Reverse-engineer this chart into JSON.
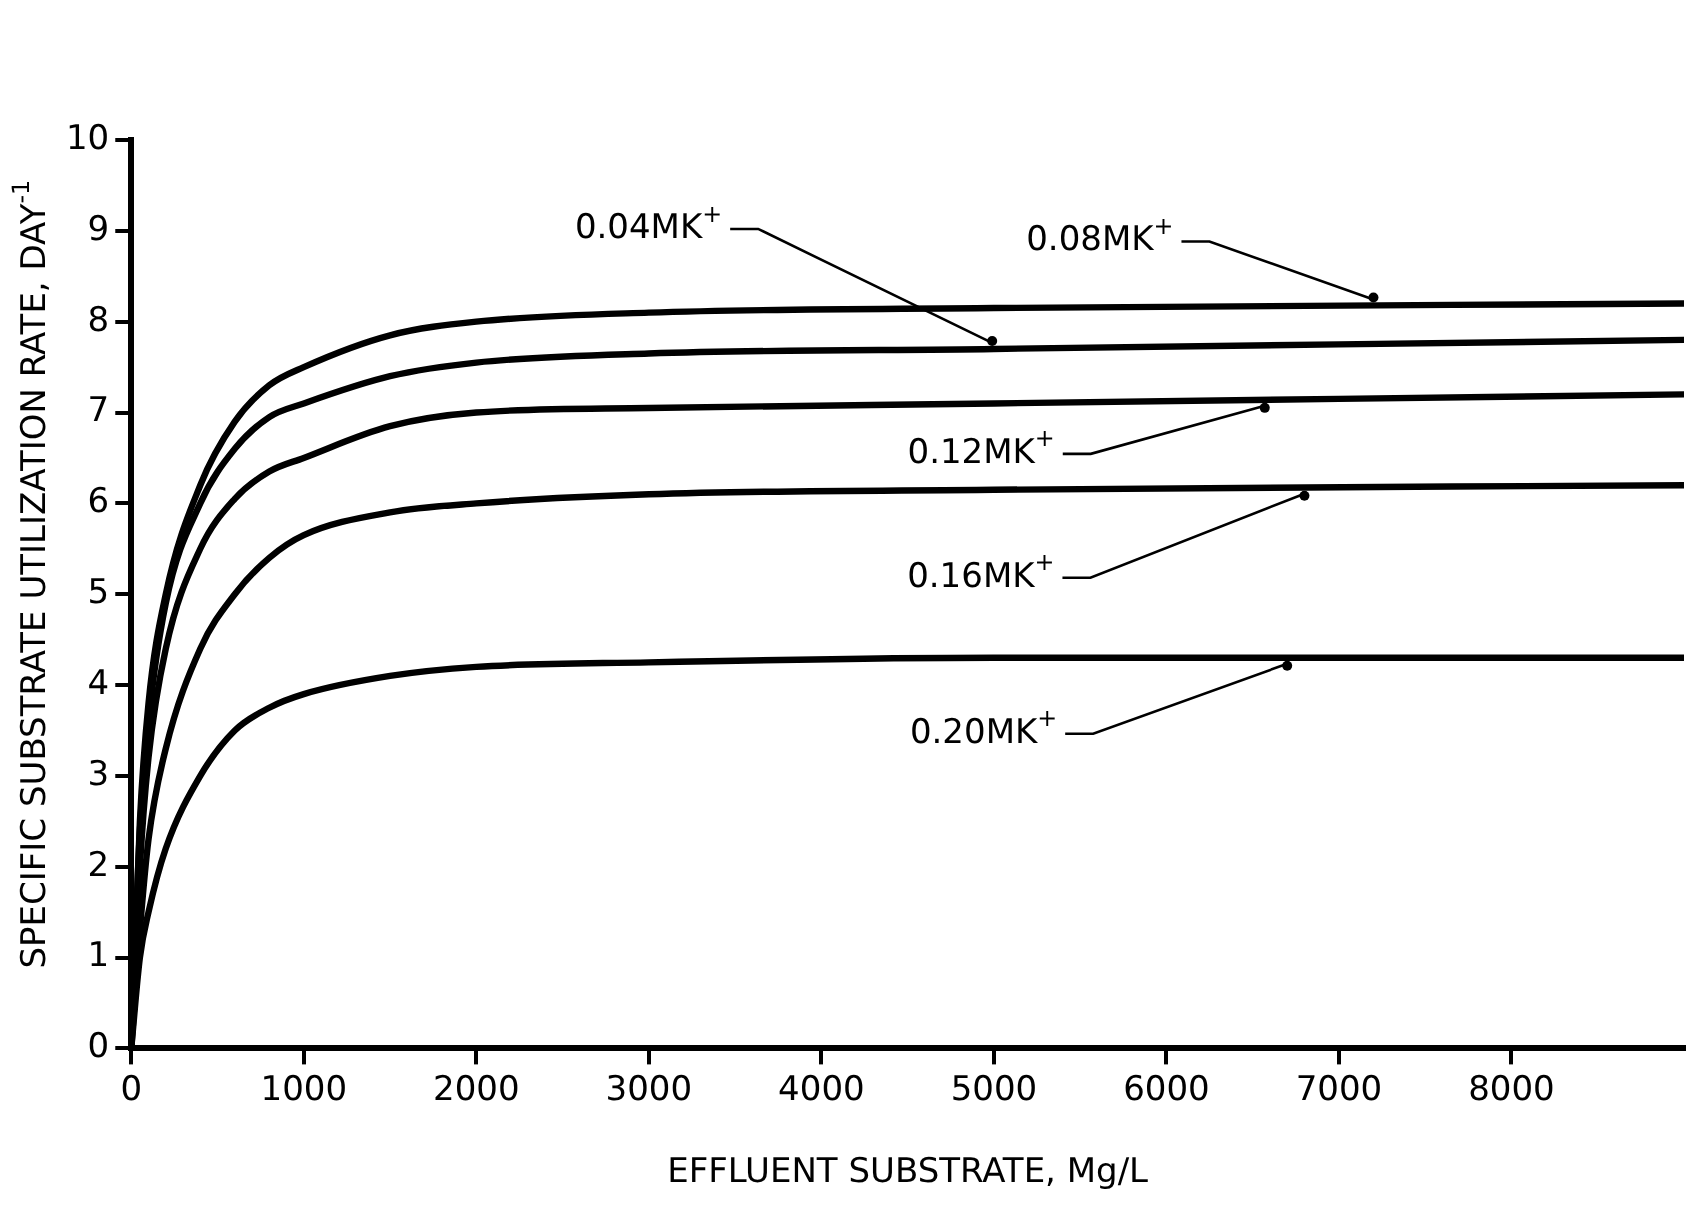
{
  "chart_data": {
    "type": "line",
    "xlabel": "EFFLUENT SUBSTRATE, Mg/L",
    "ylabel": "SPECIFIC SUBSTRATE UTILIZATION RATE, DAY$^{-1}$",
    "x": [
      0,
      50,
      100,
      200,
      400,
      600,
      800,
      1000,
      1500,
      2000,
      3000,
      5000,
      9000
    ],
    "xlim": [
      0,
      9000
    ],
    "xticks": [
      0,
      1000,
      2000,
      3000,
      4000,
      5000,
      6000,
      7000,
      8000
    ],
    "ylim": [
      0,
      10
    ],
    "yticks": [
      0,
      1,
      2,
      3,
      4,
      5,
      6,
      7,
      8,
      9,
      10
    ],
    "legend": false,
    "grid": false,
    "marker": "none",
    "line_style": "solid",
    "series": [
      {
        "name": "0.08MK$^{+}$",
        "color": "#000000",
        "values": [
          0,
          2.5,
          3.8,
          5.0,
          6.2,
          6.9,
          7.3,
          7.5,
          7.85,
          8.0,
          8.1,
          8.15,
          8.2
        ]
      },
      {
        "name": "0.04MK$^{+}$",
        "color": "#000000",
        "values": [
          0,
          2.4,
          3.6,
          4.9,
          6.0,
          6.6,
          6.95,
          7.1,
          7.4,
          7.55,
          7.65,
          7.7,
          7.8
        ]
      },
      {
        "name": "0.12MK$^{+}$",
        "color": "#000000",
        "values": [
          0,
          2.0,
          3.2,
          4.4,
          5.5,
          6.05,
          6.35,
          6.5,
          6.85,
          7.0,
          7.05,
          7.1,
          7.2
        ]
      },
      {
        "name": "0.16MK$^{+}$",
        "color": "#000000",
        "values": [
          0,
          1.3,
          2.3,
          3.3,
          4.4,
          5.0,
          5.4,
          5.65,
          5.9,
          6.0,
          6.1,
          6.15,
          6.2
        ]
      },
      {
        "name": "0.20MK$^{+}$",
        "color": "#000000",
        "values": [
          0,
          1.0,
          1.5,
          2.2,
          3.0,
          3.5,
          3.75,
          3.9,
          4.1,
          4.2,
          4.25,
          4.3,
          4.3
        ]
      }
    ]
  }
}
